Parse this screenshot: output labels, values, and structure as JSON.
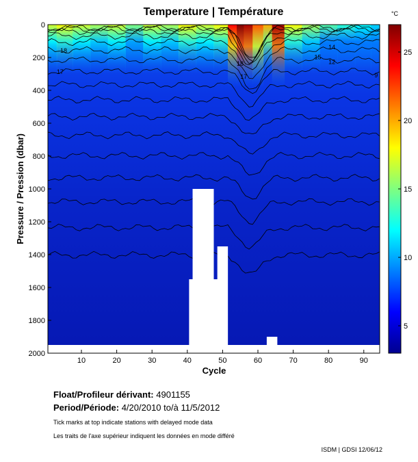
{
  "chart_data": {
    "type": "heatmap",
    "title": "Temperature | Température",
    "xlabel": "Cycle",
    "ylabel": "Pressure / Pression (dbar)",
    "xlim": [
      0.5,
      94.5
    ],
    "ylim": [
      2000,
      0
    ],
    "x_ticks": [
      10,
      20,
      30,
      40,
      50,
      60,
      70,
      80,
      90
    ],
    "y_ticks": [
      0,
      200,
      400,
      600,
      800,
      1000,
      1200,
      1400,
      1600,
      1800,
      2000
    ],
    "colorbar": {
      "unit": "°C",
      "range": [
        3,
        27
      ],
      "ticks": [
        5,
        10,
        15,
        20,
        25
      ],
      "colormap": "jet"
    },
    "contour_labels": [
      {
        "x": 4,
        "y": 170,
        "value": "18"
      },
      {
        "x": 3,
        "y": 300,
        "value": "17"
      },
      {
        "x": 54,
        "y": 250,
        "value": "18"
      },
      {
        "x": 55,
        "y": 330,
        "value": "17"
      },
      {
        "x": 80,
        "y": 150,
        "value": "14"
      },
      {
        "x": 76,
        "y": 210,
        "value": "15"
      },
      {
        "x": 80,
        "y": 240,
        "value": "12"
      },
      {
        "x": 93,
        "y": 320,
        "value": "9"
      }
    ],
    "surface_temperature": {
      "x": [
        1,
        5,
        10,
        15,
        20,
        25,
        30,
        35,
        40,
        45,
        50,
        53,
        55,
        57,
        60,
        63,
        65,
        70,
        75,
        80,
        85,
        90,
        94
      ],
      "values": [
        17,
        18,
        17,
        16,
        17,
        15,
        17,
        16,
        18,
        17,
        18,
        24,
        27,
        26,
        22,
        20,
        26,
        18,
        16,
        14,
        13,
        12,
        11
      ]
    },
    "isotherm_levels": [
      20,
      18,
      17,
      16,
      15,
      14,
      13,
      12,
      11,
      10,
      9,
      8,
      7,
      6,
      5,
      4.5,
      4
    ]
  },
  "colors": {
    "cold": "#00008f",
    "deep": "#0a2ad8",
    "warm": "#ff0000",
    "missing": "#ffffff"
  },
  "float_info": {
    "float_label": "Float/Profileur dérivant:",
    "float_id": "4901155",
    "period_label": "Period/Période:",
    "period_value": "4/20/2010  to/à  11/5/2012"
  },
  "notes": {
    "line1": "Tick marks at top indicate stations with delayed mode data",
    "line2": "Les traits de l'axe supérieur indiquent les données en mode différé"
  },
  "credit": "ISDM | GDSI  12/06/12"
}
